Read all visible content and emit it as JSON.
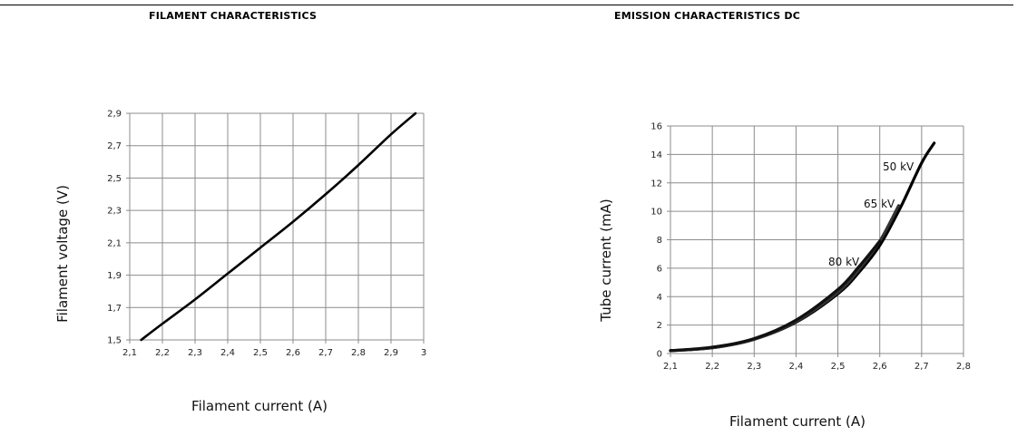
{
  "charts": [
    {
      "title": "FILAMENT CHARACTERISTICS"
    },
    {
      "title": "EMISSION CHARACTERISTICS DC"
    }
  ],
  "chart_data": [
    {
      "type": "line",
      "title": "FILAMENT CHARACTERISTICS",
      "xlabel": "Filament current (A)",
      "ylabel": "Filament voltage (V)",
      "xlim": [
        2.1,
        3.0
      ],
      "ylim": [
        1.5,
        2.9
      ],
      "xticks": [
        "2,1",
        "2,2",
        "2,3",
        "2,4",
        "2,5",
        "2,6",
        "2,7",
        "2,8",
        "2,9",
        "3"
      ],
      "yticks": [
        "1,5",
        "1,7",
        "1,9",
        "2,1",
        "2,3",
        "2,5",
        "2,7",
        "2,9"
      ],
      "grid": true,
      "series": [
        {
          "x": [
            2.135,
            2.2,
            2.3,
            2.4,
            2.5,
            2.6,
            2.7,
            2.8,
            2.9,
            2.975
          ],
          "y": [
            1.5,
            1.6,
            1.75,
            1.91,
            2.07,
            2.23,
            2.4,
            2.58,
            2.77,
            2.9
          ],
          "color": "#000000"
        }
      ]
    },
    {
      "type": "line",
      "title": "EMISSION CHARACTERISTICS DC",
      "xlabel": "Filament current (A)",
      "ylabel": "Tube current (mA)",
      "xlim": [
        2.1,
        2.8
      ],
      "ylim": [
        0,
        16
      ],
      "xticks": [
        "2,1",
        "2,2",
        "2,3",
        "2,4",
        "2,5",
        "2,6",
        "2,7",
        "2,8"
      ],
      "yticks": [
        "0",
        "2",
        "4",
        "6",
        "8",
        "10",
        "12",
        "14",
        "16"
      ],
      "grid": true,
      "series": [
        {
          "name": "50 kV",
          "x": [
            2.1,
            2.2,
            2.3,
            2.4,
            2.5,
            2.55,
            2.6,
            2.65,
            2.7,
            2.73
          ],
          "y": [
            0.2,
            0.4,
            1.0,
            2.2,
            4.2,
            5.7,
            7.6,
            10.3,
            13.4,
            14.8
          ],
          "color": "#000000"
        },
        {
          "name": "65 kV",
          "x": [
            2.1,
            2.2,
            2.3,
            2.4,
            2.5,
            2.55,
            2.6,
            2.645
          ],
          "y": [
            0.2,
            0.4,
            1.0,
            2.25,
            4.3,
            5.9,
            7.9,
            10.4
          ],
          "color": "#333333"
        },
        {
          "name": "80 kV",
          "x": [
            2.1,
            2.2,
            2.3,
            2.4,
            2.5,
            2.55,
            2.6
          ],
          "y": [
            0.2,
            0.45,
            1.05,
            2.35,
            4.5,
            6.1,
            7.9
          ],
          "color": "#111111"
        }
      ]
    }
  ]
}
